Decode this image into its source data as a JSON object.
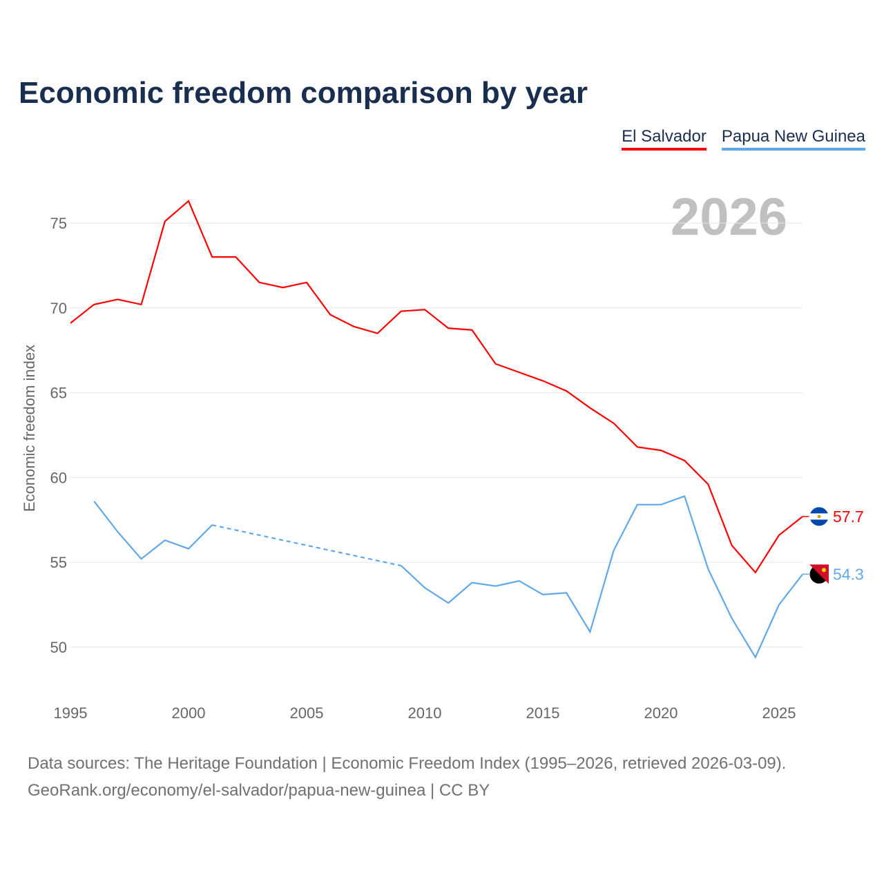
{
  "title": "Economic freedom comparison by year",
  "footer": {
    "line1": "Data sources: The Heritage Foundation | Economic Freedom Index (1995–2026, retrieved 2026-03-09).",
    "line2": "GeoRank.org/economy/el-salvador/papua-new-guinea | CC BY"
  },
  "chart_data": {
    "type": "line",
    "title": "Economic freedom comparison by year",
    "xlabel": "",
    "ylabel": "Economic freedom index",
    "year_label": "2026",
    "xlim": [
      1995,
      2026
    ],
    "ylim": [
      47.5,
      77
    ],
    "xticks": [
      1995,
      2000,
      2005,
      2010,
      2015,
      2020,
      2025
    ],
    "yticks": [
      50,
      55,
      60,
      65,
      70,
      75
    ],
    "grid": true,
    "legend_position": "top-right",
    "x": [
      1995,
      1996,
      1997,
      1998,
      1999,
      2000,
      2001,
      2002,
      2003,
      2004,
      2005,
      2006,
      2007,
      2008,
      2009,
      2010,
      2011,
      2012,
      2013,
      2014,
      2015,
      2016,
      2017,
      2018,
      2019,
      2020,
      2021,
      2022,
      2023,
      2024,
      2025,
      2026
    ],
    "series": [
      {
        "name": "El Salvador",
        "color": "#ff0000",
        "end_label": "57.7",
        "values": [
          69.1,
          70.2,
          70.5,
          70.2,
          75.1,
          76.3,
          73.0,
          73.0,
          71.5,
          71.2,
          71.5,
          69.6,
          68.9,
          68.5,
          69.8,
          69.9,
          68.8,
          68.7,
          66.7,
          66.2,
          65.7,
          65.1,
          64.1,
          63.2,
          61.8,
          61.6,
          61.0,
          59.6,
          56.0,
          54.4,
          56.6,
          57.7
        ]
      },
      {
        "name": "Papua New Guinea",
        "color": "#5fa8ea",
        "end_label": "54.3",
        "values": [
          null,
          58.6,
          56.8,
          55.2,
          56.3,
          55.8,
          57.2,
          null,
          null,
          null,
          null,
          null,
          null,
          null,
          54.8,
          53.5,
          52.6,
          53.8,
          53.6,
          53.9,
          53.1,
          53.2,
          50.9,
          55.7,
          58.4,
          58.4,
          58.9,
          54.6,
          51.7,
          49.4,
          52.5,
          54.3
        ]
      }
    ]
  }
}
